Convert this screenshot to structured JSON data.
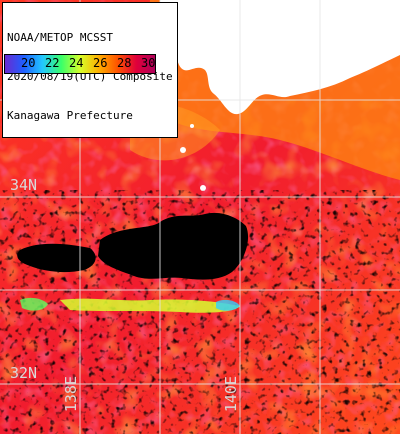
{
  "title": {
    "lines": [
      "NOAA/METOP MCSST",
      "2020/08/19(UTC) Composite",
      "Kanagawa Prefecture"
    ]
  },
  "scale": {
    "ticks": [
      "20",
      "22",
      "24",
      "26",
      "28",
      "30"
    ],
    "colors": [
      "#6a2bd1",
      "#1f5eff",
      "#22c7ff",
      "#39ff6a",
      "#d6ff2a",
      "#ffb000",
      "#ff5400",
      "#e0003a",
      "#b0005a"
    ]
  },
  "grid": {
    "lat_labels": [
      "34N",
      "32N"
    ],
    "lon_labels": [
      "138E",
      "140E"
    ]
  },
  "colors": {
    "land": "#ffffff",
    "cloud": "#000000",
    "warm": "#ff3b1f",
    "hot": "#d4005a",
    "coastal": "#ff8a00",
    "gridline": "#e6e6e6"
  }
}
